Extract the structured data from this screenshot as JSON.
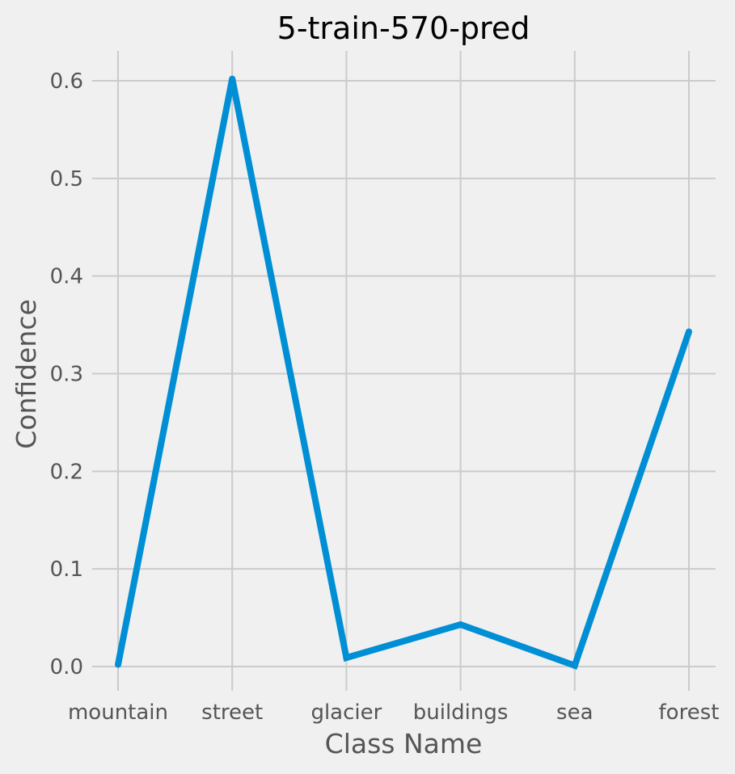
{
  "chart_data": {
    "type": "line",
    "title": "5-train-570-pred",
    "xlabel": "Class Name",
    "ylabel": "Confidence",
    "categories": [
      "mountain",
      "street",
      "glacier",
      "buildings",
      "sea",
      "forest"
    ],
    "values": [
      0.002,
      0.602,
      0.009,
      0.043,
      0.001,
      0.343
    ],
    "ylim": [
      0,
      0.6
    ],
    "yticks": [
      "0.0",
      "0.1",
      "0.2",
      "0.3",
      "0.4",
      "0.5",
      "0.6"
    ],
    "grid": true,
    "line_color": "#008fd5",
    "background_color": "#f0f0f0"
  }
}
